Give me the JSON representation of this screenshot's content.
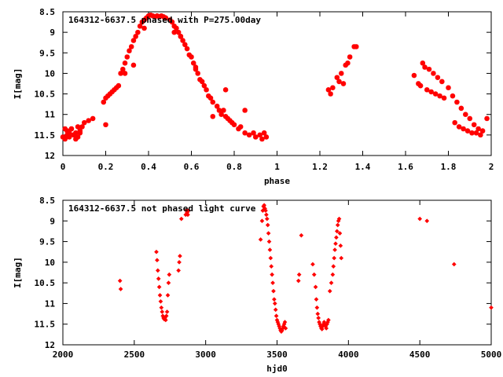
{
  "chart_data": [
    {
      "type": "scatter",
      "title": "164312-6637.5  phased with P=275.00day",
      "xlabel": "phase",
      "ylabel": "I[mag]",
      "xlim": [
        0,
        2
      ],
      "ylim": [
        12,
        8.5
      ],
      "y_reversed": true,
      "x_ticks": [
        "0",
        "0.2",
        "0.4",
        "0.6",
        "0.8",
        "1",
        "1.2",
        "1.4",
        "1.6",
        "1.8",
        "2"
      ],
      "y_ticks": [
        "8.5",
        "9",
        "9.5",
        "10",
        "10.5",
        "11",
        "11.5",
        "12"
      ],
      "marker": "cross",
      "color": "#ff0000",
      "series": [
        {
          "x": [
            0.0,
            0.01,
            0.02,
            0.03,
            0.04,
            0.05,
            0.06,
            0.07,
            0.08,
            0.09,
            0.1,
            0.12,
            0.14,
            0.19,
            0.2,
            0.21,
            0.22,
            0.23,
            0.24,
            0.25,
            0.26,
            0.27,
            0.28,
            0.29,
            0.3,
            0.31,
            0.32,
            0.33,
            0.34,
            0.35,
            0.36,
            0.37,
            0.38,
            0.39,
            0.4,
            0.41,
            0.42,
            0.43,
            0.44,
            0.45,
            0.46,
            0.47,
            0.48,
            0.5,
            0.51,
            0.52,
            0.53,
            0.54,
            0.55,
            0.56,
            0.57,
            0.58,
            0.59,
            0.6,
            0.61,
            0.62,
            0.63,
            0.64,
            0.65,
            0.66,
            0.67,
            0.68,
            0.69,
            0.7,
            0.72,
            0.73,
            0.74,
            0.75,
            0.76,
            0.77,
            0.78,
            0.79,
            0.8,
            0.82,
            0.83,
            0.85,
            0.87,
            0.89,
            0.9,
            0.92,
            0.93,
            0.94,
            0.95,
            0.2,
            0.01,
            0.02,
            0.04,
            0.06,
            0.08,
            0.03,
            0.05,
            0.07,
            0.7,
            0.52,
            0.55,
            0.29,
            0.33,
            0.38,
            0.45,
            0.48,
            0.62,
            0.76,
            0.85
          ],
          "y": [
            11.55,
            11.6,
            11.5,
            11.45,
            11.35,
            11.5,
            11.6,
            11.55,
            11.45,
            11.3,
            11.2,
            11.15,
            11.1,
            10.7,
            10.6,
            10.55,
            10.5,
            10.45,
            10.4,
            10.35,
            10.3,
            10.0,
            9.9,
            9.75,
            9.6,
            9.45,
            9.35,
            9.2,
            9.1,
            9.0,
            8.85,
            8.75,
            8.7,
            8.65,
            8.6,
            8.58,
            8.6,
            8.62,
            8.6,
            8.62,
            8.6,
            8.62,
            8.65,
            8.7,
            8.75,
            8.85,
            8.9,
            9.0,
            9.1,
            9.2,
            9.3,
            9.4,
            9.55,
            9.6,
            9.75,
            9.85,
            10.0,
            10.15,
            10.2,
            10.3,
            10.4,
            10.55,
            10.6,
            10.7,
            10.8,
            10.9,
            11.0,
            10.9,
            11.05,
            11.1,
            11.15,
            11.2,
            11.25,
            11.35,
            11.3,
            11.45,
            11.5,
            11.45,
            11.55,
            11.5,
            11.6,
            11.45,
            11.55,
            11.25,
            11.35,
            11.4,
            11.35,
            11.45,
            11.4,
            11.55,
            11.5,
            11.3,
            11.05,
            9.0,
            9.1,
            10.0,
            9.8,
            8.9,
            8.62,
            8.65,
            9.9,
            10.4,
            10.9
          ]
        },
        {
          "x": [
            1.24,
            1.25,
            1.26,
            1.28,
            1.29,
            1.3,
            1.31,
            1.32,
            1.33,
            1.34,
            1.36,
            1.37,
            1.64,
            1.66,
            1.67,
            1.68,
            1.69,
            1.7,
            1.71,
            1.72,
            1.73,
            1.74,
            1.75,
            1.76,
            1.77,
            1.78,
            1.8,
            1.82,
            1.84,
            1.86,
            1.88,
            1.9,
            1.92,
            1.94,
            1.96,
            1.98,
            1.83,
            1.85,
            1.87,
            1.89,
            1.91,
            1.93,
            1.95
          ],
          "y": [
            10.4,
            10.5,
            10.35,
            10.1,
            10.2,
            10.0,
            10.25,
            9.8,
            9.75,
            9.6,
            9.35,
            9.35,
            10.05,
            10.25,
            10.3,
            9.75,
            9.85,
            10.4,
            9.9,
            10.45,
            10.0,
            10.5,
            10.1,
            10.55,
            10.2,
            10.6,
            10.35,
            10.55,
            10.7,
            10.85,
            11.0,
            11.1,
            11.25,
            11.35,
            11.4,
            11.1,
            11.2,
            11.3,
            11.35,
            11.4,
            11.45,
            11.45,
            11.5
          ]
        }
      ]
    },
    {
      "type": "scatter",
      "title": "164312-6637.5 not phased light curve",
      "xlabel": "hjd0",
      "ylabel": "I[mag]",
      "xlim": [
        2000,
        5000
      ],
      "ylim": [
        12,
        8.5
      ],
      "y_reversed": true,
      "x_ticks": [
        "2000",
        "2500",
        "3000",
        "3500",
        "4000",
        "4500",
        "5000"
      ],
      "y_ticks": [
        "8.5",
        "9",
        "9.5",
        "10",
        "10.5",
        "11",
        "11.5",
        "12"
      ],
      "marker": "diamond",
      "color": "#ff0000",
      "series": [
        {
          "x": [
            2400,
            2405,
            2655,
            2660,
            2665,
            2670,
            2675,
            2680,
            2685,
            2690,
            2695,
            2700,
            2705,
            2710,
            2715,
            2720,
            2725,
            2730,
            2735,
            2740,
            2745,
            2810,
            2815,
            2820,
            2830,
            2860,
            2865,
            2870,
            2875,
            2880,
            3385,
            3395,
            3400,
            3405,
            3410,
            3415,
            3420,
            3425,
            3430,
            3435,
            3440,
            3445,
            3450,
            3455,
            3460,
            3465,
            3470,
            3475,
            3480,
            3485,
            3490,
            3495,
            3500,
            3505,
            3510,
            3515,
            3520,
            3525,
            3530,
            3535,
            3540,
            3545,
            3550,
            3555,
            3560,
            3650,
            3655,
            3670,
            3750,
            3760,
            3770,
            3775,
            3780,
            3785,
            3790,
            3795,
            3800,
            3805,
            3810,
            3815,
            3820,
            3825,
            3830,
            3835,
            3840,
            3845,
            3850,
            3855,
            3860,
            3870,
            3880,
            3890,
            3895,
            3900,
            3905,
            3910,
            3915,
            3920,
            3925,
            3930,
            3935,
            3940,
            3945,
            3950,
            4500,
            4550,
            4740,
            5000
          ],
          "y": [
            10.45,
            10.65,
            9.75,
            9.95,
            10.2,
            10.4,
            10.6,
            10.8,
            10.95,
            11.1,
            11.2,
            11.3,
            11.35,
            11.38,
            11.35,
            11.4,
            11.3,
            11.2,
            10.8,
            10.5,
            10.3,
            10.2,
            10.0,
            9.85,
            8.95,
            8.85,
            8.75,
            8.8,
            8.85,
            8.75,
            9.45,
            9.0,
            8.75,
            8.65,
            8.62,
            8.7,
            8.75,
            8.85,
            8.95,
            9.1,
            9.3,
            9.5,
            9.7,
            9.9,
            10.1,
            10.3,
            10.5,
            10.7,
            10.9,
            11.0,
            11.15,
            11.3,
            11.4,
            11.45,
            11.5,
            11.55,
            11.6,
            11.65,
            11.68,
            11.65,
            11.6,
            11.55,
            11.5,
            11.45,
            11.6,
            10.45,
            10.3,
            9.35,
            10.05,
            10.3,
            10.6,
            10.9,
            11.1,
            11.25,
            11.35,
            11.45,
            11.5,
            11.55,
            11.6,
            11.62,
            11.55,
            11.5,
            11.45,
            11.5,
            11.55,
            11.6,
            11.5,
            11.45,
            11.4,
            10.7,
            10.5,
            10.3,
            10.1,
            9.9,
            9.7,
            9.55,
            9.4,
            9.25,
            9.1,
            9.0,
            8.95,
            9.3,
            9.6,
            9.9,
            8.95,
            9.0,
            10.05,
            11.1
          ]
        }
      ]
    }
  ]
}
